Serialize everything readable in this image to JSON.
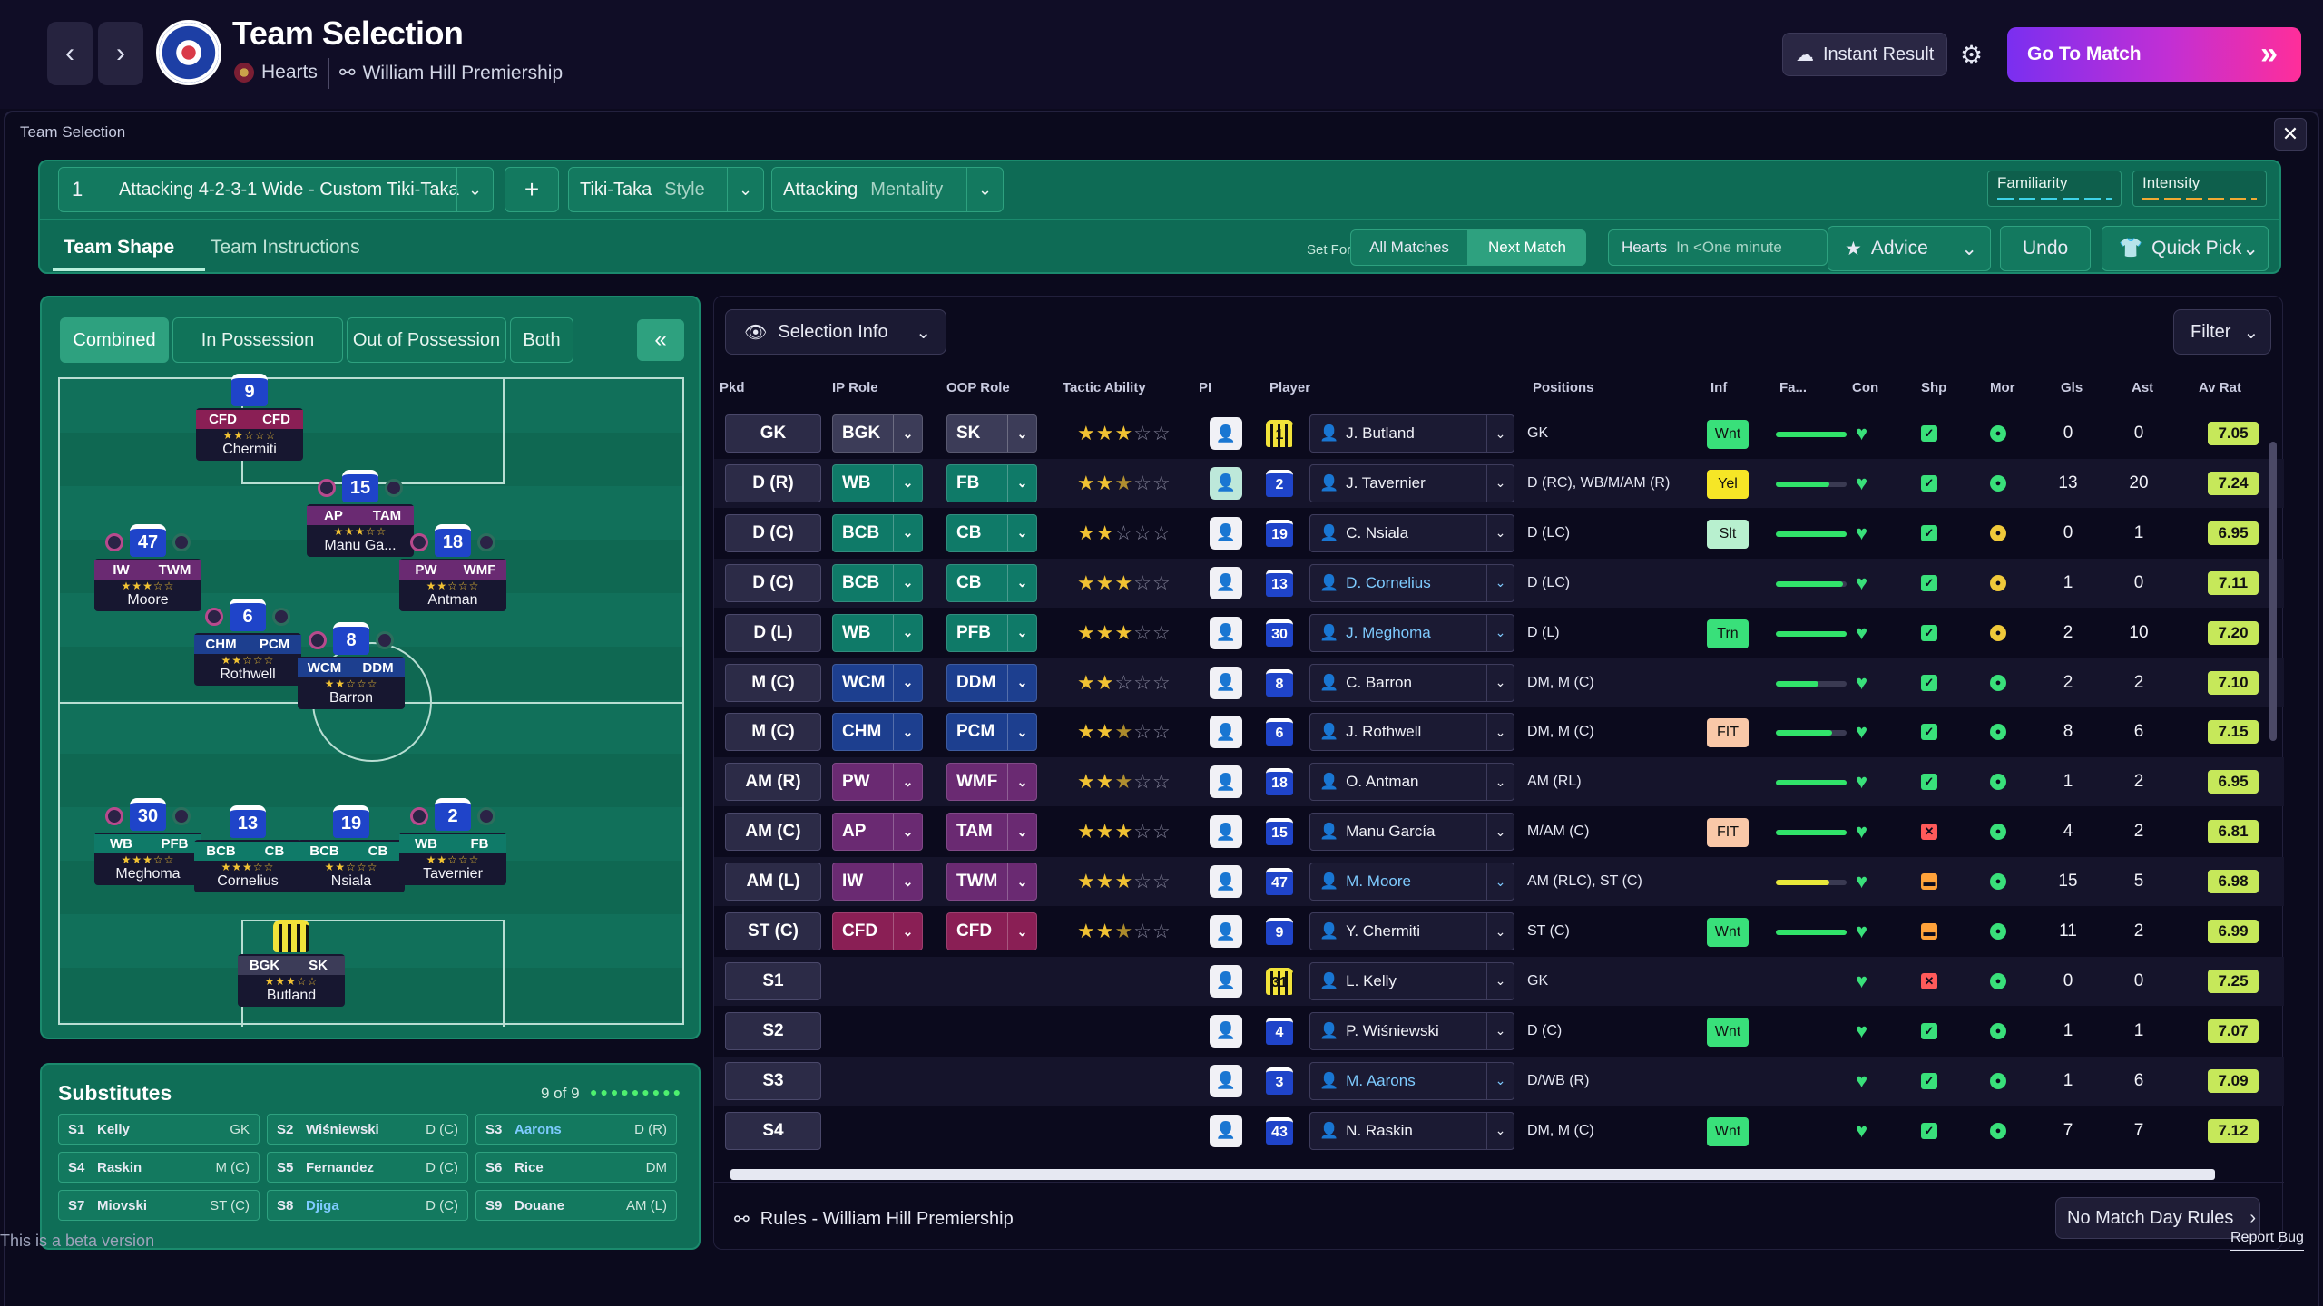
{
  "header": {
    "title": "Team Selection",
    "opponent": "Hearts",
    "competition": "William Hill Premiership",
    "instant_result": "Instant Result",
    "go_to_match": "Go To Match"
  },
  "panel": {
    "title": "Team Selection",
    "tactic": {
      "slot": "1",
      "name": "Attacking 4-2-3-1 Wide - Custom Tiki-Taka",
      "style_value": "Tiki-Taka",
      "style_label": "Style",
      "mentality_value": "Attacking",
      "mentality_label": "Mentality",
      "familiarity": "Familiarity",
      "intensity": "Intensity"
    },
    "tabs": [
      "Team Shape",
      "Team Instructions"
    ],
    "set_for": {
      "label": "Set For",
      "options": [
        "All Matches",
        "Next Match"
      ],
      "selected": "Next Match"
    },
    "next_opponent": {
      "team": "Hearts",
      "time": "In <One minute"
    },
    "buttons": {
      "advice": "Advice",
      "undo": "Undo",
      "quick_pick": "Quick Pick"
    }
  },
  "pitch": {
    "tabs": [
      "Combined",
      "In Possession",
      "Out of Possession",
      "Both"
    ],
    "players": [
      {
        "num": "9",
        "ip": "CFD",
        "oop": "CFD",
        "name": "Chermiti",
        "stars": "★★☆☆☆"
      },
      {
        "num": "15",
        "ip": "AP",
        "oop": "TAM",
        "name": "Manu Ga...",
        "stars": "★★★☆☆"
      },
      {
        "num": "47",
        "ip": "IW",
        "oop": "TWM",
        "name": "Moore",
        "stars": "★★★☆☆"
      },
      {
        "num": "18",
        "ip": "PW",
        "oop": "WMF",
        "name": "Antman",
        "stars": "★★☆☆☆"
      },
      {
        "num": "6",
        "ip": "CHM",
        "oop": "PCM",
        "name": "Rothwell",
        "stars": "★★☆☆☆"
      },
      {
        "num": "8",
        "ip": "WCM",
        "oop": "DDM",
        "name": "Barron",
        "stars": "★★☆☆☆"
      },
      {
        "num": "30",
        "ip": "WB",
        "oop": "PFB",
        "name": "Meghoma",
        "stars": "★★★☆☆"
      },
      {
        "num": "13",
        "ip": "BCB",
        "oop": "CB",
        "name": "Cornelius",
        "stars": "★★★☆☆"
      },
      {
        "num": "19",
        "ip": "BCB",
        "oop": "CB",
        "name": "Nsiala",
        "stars": "★★☆☆☆"
      },
      {
        "num": "2",
        "ip": "WB",
        "oop": "FB",
        "name": "Tavernier",
        "stars": "★★☆☆☆"
      },
      {
        "num": "",
        "ip": "BGK",
        "oop": "SK",
        "name": "Butland",
        "stars": "★★★☆☆"
      }
    ]
  },
  "subs": {
    "title": "Substitutes",
    "count": "9 of 9",
    "items": [
      {
        "id": "S1",
        "name": "Kelly",
        "pos": "GK"
      },
      {
        "id": "S2",
        "name": "Wiśniewski",
        "pos": "D (C)"
      },
      {
        "id": "S3",
        "name": "Aarons",
        "pos": "D (R)"
      },
      {
        "id": "S4",
        "name": "Raskin",
        "pos": "M (C)"
      },
      {
        "id": "S5",
        "name": "Fernandez",
        "pos": "D (C)"
      },
      {
        "id": "S6",
        "name": "Rice",
        "pos": "DM"
      },
      {
        "id": "S7",
        "name": "Miovski",
        "pos": "ST (C)"
      },
      {
        "id": "S8",
        "name": "Djiga",
        "pos": "D (C)"
      },
      {
        "id": "S9",
        "name": "Douane",
        "pos": "AM (L)"
      }
    ]
  },
  "table": {
    "selection_info": "Selection Info",
    "filter": "Filter",
    "columns": [
      "Pkd",
      "IP Role",
      "OOP Role",
      "Tactic Ability",
      "PI",
      "Player",
      "Positions",
      "Inf",
      "Fa...",
      "Con",
      "Shp",
      "Mor",
      "Gls",
      "Ast",
      "Av Rat"
    ],
    "rows": [
      {
        "pkd": "GK",
        "ip": "BGK",
        "oop": "SK",
        "stars": 3,
        "num": "1",
        "player": "J. Butland",
        "pos": "GK",
        "inf": "Wnt",
        "fa": 1.0,
        "shp": "ok",
        "mor": "good",
        "gls": "0",
        "ast": "0",
        "rat": "7.05"
      },
      {
        "pkd": "D (R)",
        "ip": "WB",
        "oop": "FB",
        "stars": 2.5,
        "num": "2",
        "player": "J. Tavernier",
        "pos": "D (RC), WB/M/AM (R)",
        "inf": "Yel",
        "fa": 0.75,
        "shp": "ok",
        "mor": "good",
        "gls": "13",
        "ast": "20",
        "rat": "7.24",
        "pi_on": true
      },
      {
        "pkd": "D (C)",
        "ip": "BCB",
        "oop": "CB",
        "stars": 2,
        "num": "19",
        "player": "C. Nsiala",
        "pos": "D (LC)",
        "inf": "Slt",
        "fa": 1.0,
        "shp": "ok",
        "mor": "ok",
        "gls": "0",
        "ast": "1",
        "rat": "6.95"
      },
      {
        "pkd": "D (C)",
        "ip": "BCB",
        "oop": "CB",
        "stars": 3,
        "num": "13",
        "player": "D. Cornelius",
        "pos": "D (LC)",
        "inf": "",
        "fa": 0.95,
        "shp": "ok",
        "mor": "ok",
        "gls": "1",
        "ast": "0",
        "rat": "7.11",
        "blue": true
      },
      {
        "pkd": "D (L)",
        "ip": "WB",
        "oop": "PFB",
        "stars": 3,
        "num": "30",
        "player": "J. Meghoma",
        "pos": "D (L)",
        "inf": "Trn",
        "fa": 1.0,
        "shp": "ok",
        "mor": "ok",
        "gls": "2",
        "ast": "10",
        "rat": "7.20",
        "blue": true
      },
      {
        "pkd": "M (C)",
        "ip": "WCM",
        "oop": "DDM",
        "stars": 2,
        "num": "8",
        "player": "C. Barron",
        "pos": "DM, M (C)",
        "inf": "",
        "fa": 0.6,
        "shp": "ok",
        "mor": "good",
        "gls": "2",
        "ast": "2",
        "rat": "7.10"
      },
      {
        "pkd": "M (C)",
        "ip": "CHM",
        "oop": "PCM",
        "stars": 2.5,
        "num": "6",
        "player": "J. Rothwell",
        "pos": "DM, M (C)",
        "inf": "FIT",
        "fa": 0.8,
        "shp": "ok",
        "mor": "good",
        "gls": "8",
        "ast": "6",
        "rat": "7.15"
      },
      {
        "pkd": "AM (R)",
        "ip": "PW",
        "oop": "WMF",
        "stars": 2.5,
        "num": "18",
        "player": "O. Antman",
        "pos": "AM (RL)",
        "inf": "",
        "fa": 1.0,
        "shp": "ok",
        "mor": "good",
        "gls": "1",
        "ast": "2",
        "rat": "6.95"
      },
      {
        "pkd": "AM (C)",
        "ip": "AP",
        "oop": "TAM",
        "stars": 3,
        "num": "15",
        "player": "Manu García",
        "pos": "M/AM (C)",
        "inf": "FIT",
        "fa": 1.0,
        "shp": "bad",
        "mor": "good",
        "gls": "4",
        "ast": "2",
        "rat": "6.81"
      },
      {
        "pkd": "AM (L)",
        "ip": "IW",
        "oop": "TWM",
        "stars": 3,
        "num": "47",
        "player": "M. Moore",
        "pos": "AM (RLC), ST (C)",
        "inf": "",
        "fa": 0.75,
        "fa_color": "#e8e83a",
        "shp": "warn",
        "mor": "good",
        "gls": "15",
        "ast": "5",
        "rat": "6.98",
        "blue": true
      },
      {
        "pkd": "ST (C)",
        "ip": "CFD",
        "oop": "CFD",
        "stars": 2.5,
        "num": "9",
        "player": "Y. Chermiti",
        "pos": "ST (C)",
        "inf": "Wnt",
        "fa": 1.0,
        "shp": "warn",
        "mor": "good",
        "gls": "11",
        "ast": "2",
        "rat": "6.99"
      },
      {
        "pkd": "S1",
        "ip": "",
        "oop": "",
        "stars": 0,
        "num": "31",
        "player": "L. Kelly",
        "pos": "GK",
        "inf": "",
        "fa": 0,
        "shp": "bad",
        "mor": "good",
        "gls": "0",
        "ast": "0",
        "rat": "7.25"
      },
      {
        "pkd": "S2",
        "ip": "",
        "oop": "",
        "stars": 0,
        "num": "4",
        "player": "P. Wiśniewski",
        "pos": "D (C)",
        "inf": "Wnt",
        "fa": 0,
        "shp": "ok",
        "mor": "good",
        "gls": "1",
        "ast": "1",
        "rat": "7.07"
      },
      {
        "pkd": "S3",
        "ip": "",
        "oop": "",
        "stars": 0,
        "num": "3",
        "player": "M. Aarons",
        "pos": "D/WB (R)",
        "inf": "",
        "fa": 0,
        "shp": "ok",
        "mor": "good",
        "gls": "1",
        "ast": "6",
        "rat": "7.09",
        "blue": true
      },
      {
        "pkd": "S4",
        "ip": "",
        "oop": "",
        "stars": 0,
        "num": "43",
        "player": "N. Raskin",
        "pos": "DM, M (C)",
        "inf": "Wnt",
        "fa": 0,
        "shp": "ok",
        "mor": "good",
        "gls": "7",
        "ast": "7",
        "rat": "7.12"
      }
    ],
    "rules": "Rules - William Hill Premiership",
    "no_rules": "No Match Day Rules"
  },
  "footer": {
    "beta": "This is a beta version",
    "report_bug": "Report Bug"
  },
  "colors": {
    "role_gk": "#3c3c58",
    "role_def": "#0f7a68",
    "role_mid": "#1d3f8f",
    "role_am": "#6a2a72",
    "role_st": "#8a1f55",
    "inf_green": "#39e07a",
    "inf_yellow": "#f6e626",
    "inf_slt": "#b8f0cf",
    "inf_fit": "#f9c8a8",
    "accent": "#2ea17f"
  }
}
